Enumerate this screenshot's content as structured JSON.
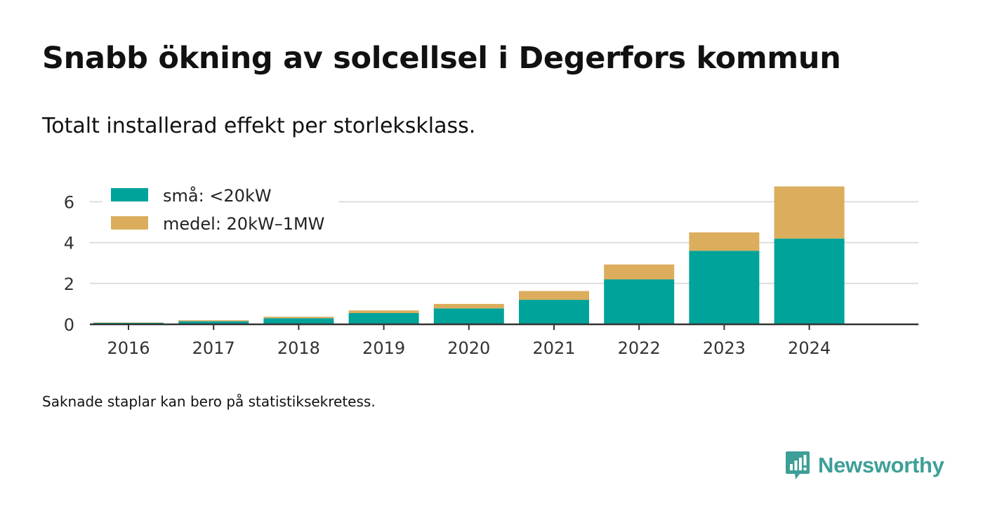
{
  "title": "Snabb ökning av solcellsel i Degerfors kommun",
  "subtitle": "Totalt installerad effekt per storleksklass.",
  "footnote": "Saknade staplar kan bero på statistiksekretess.",
  "brand": {
    "name": "Newsworthy",
    "icon": "newsworthy-logo-icon",
    "color": "#3d9f98"
  },
  "chart_data": {
    "type": "bar",
    "stacked": true,
    "categories": [
      "2016",
      "2017",
      "2018",
      "2019",
      "2020",
      "2021",
      "2022",
      "2023",
      "2024"
    ],
    "series": [
      {
        "name": "små: <20kW",
        "color": "#00a39a",
        "values": [
          0.07,
          0.15,
          0.3,
          0.55,
          0.78,
          1.2,
          2.2,
          3.6,
          4.2
        ]
      },
      {
        "name": "medel: 20kW–1MW",
        "color": "#dbad5c",
        "values": [
          0.02,
          0.05,
          0.07,
          0.13,
          0.22,
          0.43,
          0.73,
          0.9,
          2.55
        ]
      }
    ],
    "yticks": [
      0,
      2,
      4,
      6
    ],
    "ylim": [
      0,
      7
    ],
    "xlabel": "",
    "ylabel": "",
    "grid": true,
    "legend_position": "top-left"
  }
}
